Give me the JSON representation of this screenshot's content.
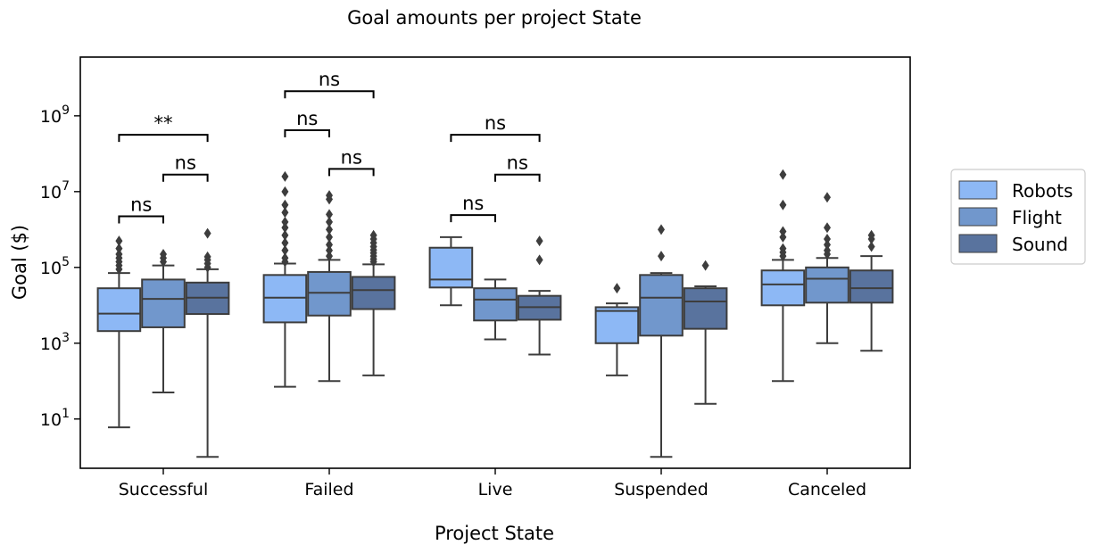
{
  "chart_data": {
    "type": "box",
    "title": "Goal amounts per project State",
    "xlabel": "Project State",
    "ylabel": "Goal ($)",
    "yscale": "log",
    "ylim_log10": [
      -0.3,
      10.55
    ],
    "yticks": [
      {
        "exp": 1,
        "base": "10",
        "sup": "1"
      },
      {
        "exp": 3,
        "base": "10",
        "sup": "3"
      },
      {
        "exp": 5,
        "base": "10",
        "sup": "5"
      },
      {
        "exp": 7,
        "base": "10",
        "sup": "7"
      },
      {
        "exp": 9,
        "base": "10",
        "sup": "9"
      }
    ],
    "categories": [
      "Successful",
      "Failed",
      "Live",
      "Suspended",
      "Canceled"
    ],
    "series": [
      {
        "name": "Robots",
        "color": "#8db8f5"
      },
      {
        "name": "Flight",
        "color": "#7197cc"
      },
      {
        "name": "Sound",
        "color": "#59739e"
      }
    ],
    "legend": {
      "position": "right",
      "labels": [
        "Robots",
        "Flight",
        "Sound"
      ]
    },
    "boxes": [
      [
        {
          "q1": 3.32,
          "median": 3.78,
          "q3": 4.45,
          "lo": 0.78,
          "hi": 4.85,
          "outliers": [
            4.95,
            5.05,
            5.15,
            5.25,
            5.35,
            5.5,
            5.7
          ]
        },
        {
          "q1": 3.42,
          "median": 4.17,
          "q3": 4.68,
          "lo": 1.7,
          "hi": 5.05,
          "outliers": [
            5.15,
            5.25,
            5.35
          ]
        },
        {
          "q1": 3.77,
          "median": 4.2,
          "q3": 4.6,
          "lo": 0.0,
          "hi": 4.95,
          "outliers": [
            5.0,
            5.1,
            5.2,
            5.28,
            5.9
          ]
        }
      ],
      [
        {
          "q1": 3.55,
          "median": 4.2,
          "q3": 4.8,
          "lo": 1.85,
          "hi": 5.1,
          "outliers": [
            5.15,
            5.25,
            5.45,
            5.65,
            5.85,
            6.05,
            6.2,
            6.45,
            6.65,
            7.0,
            7.4
          ]
        },
        {
          "q1": 3.73,
          "median": 4.33,
          "q3": 4.88,
          "lo": 2.0,
          "hi": 5.2,
          "outliers": [
            5.3,
            5.45,
            5.6,
            5.8,
            6.0,
            6.2,
            6.4,
            6.8,
            6.9
          ]
        },
        {
          "q1": 3.9,
          "median": 4.4,
          "q3": 4.75,
          "lo": 2.15,
          "hi": 5.08,
          "outliers": [
            5.15,
            5.22,
            5.3,
            5.38,
            5.46,
            5.55,
            5.65,
            5.75,
            5.85
          ]
        }
      ],
      [
        {
          "q1": 4.47,
          "median": 4.68,
          "q3": 5.52,
          "lo": 4.0,
          "hi": 5.8,
          "outliers": []
        },
        {
          "q1": 3.6,
          "median": 4.15,
          "q3": 4.45,
          "lo": 3.1,
          "hi": 4.68,
          "outliers": []
        },
        {
          "q1": 3.62,
          "median": 3.95,
          "q3": 4.25,
          "lo": 2.7,
          "hi": 4.38,
          "outliers": [
            5.2,
            5.7
          ]
        }
      ],
      [
        {
          "q1": 3.0,
          "median": 3.85,
          "q3": 3.95,
          "lo": 2.15,
          "hi": 4.05,
          "outliers": [
            4.45
          ]
        },
        {
          "q1": 3.2,
          "median": 4.2,
          "q3": 4.8,
          "lo": 0.0,
          "hi": 4.85,
          "outliers": [
            5.3,
            6.0
          ]
        },
        {
          "q1": 3.38,
          "median": 4.1,
          "q3": 4.45,
          "lo": 1.4,
          "hi": 4.5,
          "outliers": [
            5.05
          ]
        }
      ],
      [
        {
          "q1": 4.0,
          "median": 4.55,
          "q3": 4.92,
          "lo": 2.0,
          "hi": 5.2,
          "outliers": [
            5.3,
            5.4,
            5.5,
            5.8,
            5.95,
            6.65,
            7.45
          ]
        },
        {
          "q1": 4.07,
          "median": 4.7,
          "q3": 5.0,
          "lo": 3.0,
          "hi": 5.25,
          "outliers": [
            5.35,
            5.45,
            5.6,
            5.75,
            6.05,
            6.85
          ]
        },
        {
          "q1": 4.07,
          "median": 4.45,
          "q3": 4.92,
          "lo": 2.8,
          "hi": 5.3,
          "outliers": [
            5.55,
            5.75,
            5.85
          ]
        }
      ]
    ],
    "annotations": [
      {
        "category": 0,
        "from": 0,
        "to": 1,
        "text": "ns",
        "y": 6.35
      },
      {
        "category": 0,
        "from": 1,
        "to": 2,
        "text": "ns",
        "y": 7.45
      },
      {
        "category": 0,
        "from": 0,
        "to": 2,
        "text": "**",
        "y": 8.5
      },
      {
        "category": 1,
        "from": 1,
        "to": 2,
        "text": "ns",
        "y": 7.6
      },
      {
        "category": 1,
        "from": 0,
        "to": 1,
        "text": "ns",
        "y": 8.62
      },
      {
        "category": 1,
        "from": 0,
        "to": 2,
        "text": "ns",
        "y": 9.65
      },
      {
        "category": 2,
        "from": 0,
        "to": 1,
        "text": "ns",
        "y": 6.38
      },
      {
        "category": 2,
        "from": 1,
        "to": 2,
        "text": "ns",
        "y": 7.45
      },
      {
        "category": 2,
        "from": 0,
        "to": 2,
        "text": "ns",
        "y": 8.5
      }
    ]
  }
}
